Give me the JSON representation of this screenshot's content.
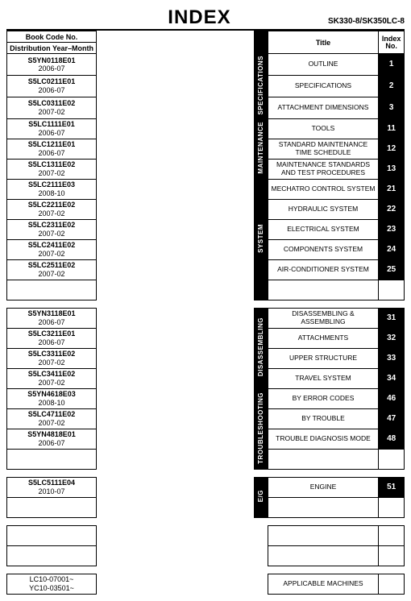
{
  "header": {
    "title": "INDEX",
    "model": "SK330-8/SK350LC-8"
  },
  "columns": {
    "book_code": "Book Code No.",
    "dist": "Distribution Year–Month",
    "title": "Title",
    "index_no": "Index\nNo."
  },
  "col_widths": {
    "book": 105,
    "gap": 185,
    "vcat": 16,
    "title": 130,
    "idx": 30
  },
  "rows": [
    {
      "code": "S5YN0118E01",
      "date": "2006-07",
      "cat": "SPECIFICATIONS",
      "cat_span": 3,
      "title": "OUTLINE",
      "idx": "1"
    },
    {
      "code": "S5LC0211E01",
      "date": "2006-07",
      "title": "SPECIFICATIONS",
      "idx": "2"
    },
    {
      "code": "S5LC0311E02",
      "date": "2007-02",
      "title": "ATTACHMENT DIMENSIONS",
      "idx": "3"
    },
    {
      "code": "S5LC1111E01",
      "date": "2006-07",
      "cat": "MAINTENANCE",
      "cat_span": 3,
      "title": "TOOLS",
      "idx": "11"
    },
    {
      "code": "S5LC1211E01",
      "date": "2006-07",
      "title": "STANDARD MAINTENANCE TIME SCHEDULE",
      "idx": "12"
    },
    {
      "code": "S5LC1311E02",
      "date": "2007-02",
      "title": "MAINTENANCE STANDARDS AND TEST PROCEDURES",
      "idx": "13"
    },
    {
      "code": "S5LC2111E03",
      "date": "2008-10",
      "cat": "SYSTEM",
      "cat_span": 6,
      "title": "MECHATRO CONTROL SYSTEM",
      "idx": "21"
    },
    {
      "code": "S5LC2211E02",
      "date": "2007-02",
      "title": "HYDRAULIC SYSTEM",
      "idx": "22"
    },
    {
      "code": "S5LC2311E02",
      "date": "2007-02",
      "title": "ELECTRICAL SYSTEM",
      "idx": "23"
    },
    {
      "code": "S5LC2411E02",
      "date": "2007-02",
      "title": "COMPONENTS SYSTEM",
      "idx": "24"
    },
    {
      "code": "S5LC2511E02",
      "date": "2007-02",
      "title": "AIR-CONDITIONER SYSTEM",
      "idx": "25"
    },
    {
      "code": "",
      "date": "",
      "title": "",
      "idx": "",
      "blank": true
    },
    {
      "sep": true
    },
    {
      "code": "S5YN3118E01",
      "date": "2006-07",
      "cat": "DISASSEMBLING",
      "cat_span": 4,
      "title": "DISASSEMBLING & ASSEMBLING",
      "idx": "31"
    },
    {
      "code": "S5LC3211E01",
      "date": "2006-07",
      "title": "ATTACHMENTS",
      "idx": "32"
    },
    {
      "code": "S5LC3311E02",
      "date": "2007-02",
      "title": "UPPER STRUCTURE",
      "idx": "33"
    },
    {
      "code": "S5LC3411E02",
      "date": "2007-02",
      "title": "TRAVEL SYSTEM",
      "idx": "34"
    },
    {
      "code": "S5YN4618E03",
      "date": "2008-10",
      "cat": "TROUBLESHOOTING",
      "cat_span": 4,
      "title": "BY ERROR CODES",
      "idx": "46"
    },
    {
      "code": "S5LC4711E02",
      "date": "2007-02",
      "title": "BY TROUBLE",
      "idx": "47"
    },
    {
      "code": "S5YN4818E01",
      "date": "2006-07",
      "title": "TROUBLE DIAGNOSIS MODE",
      "idx": "48"
    },
    {
      "code": "",
      "date": "",
      "title": "",
      "idx": "",
      "blank": true
    },
    {
      "sep": true
    },
    {
      "code": "S5LC5111E04",
      "date": "2010-07",
      "cat": "E/G",
      "cat_span": 2,
      "title": "ENGINE",
      "idx": "51"
    },
    {
      "code": "",
      "date": "",
      "title": "",
      "idx": "",
      "blank": true
    },
    {
      "sep": true
    },
    {
      "code": "",
      "date": "",
      "title": "",
      "idx": "",
      "nocat": true,
      "blank": true
    },
    {
      "code": "",
      "date": "",
      "title": "",
      "idx": "",
      "nocat": true,
      "blank": true
    },
    {
      "sep": true
    },
    {
      "code": "LC10-07001~\nYC10-03501~",
      "date": "",
      "title": "APPLICABLE MACHINES",
      "idx": "",
      "nocat": true,
      "codeonly": true
    }
  ]
}
